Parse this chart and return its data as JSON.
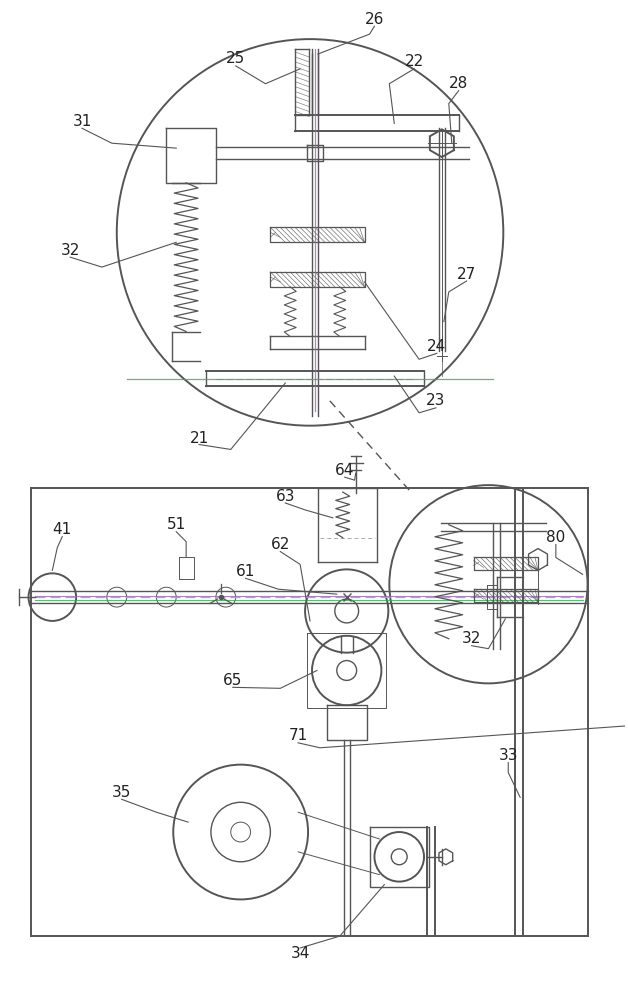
{
  "bg_color": "#ffffff",
  "lc": "#555555",
  "purple": "#9966bb",
  "green": "#33aa55",
  "gray": "#888888",
  "fig_width": 6.28,
  "fig_height": 10.0,
  "dpi": 100
}
